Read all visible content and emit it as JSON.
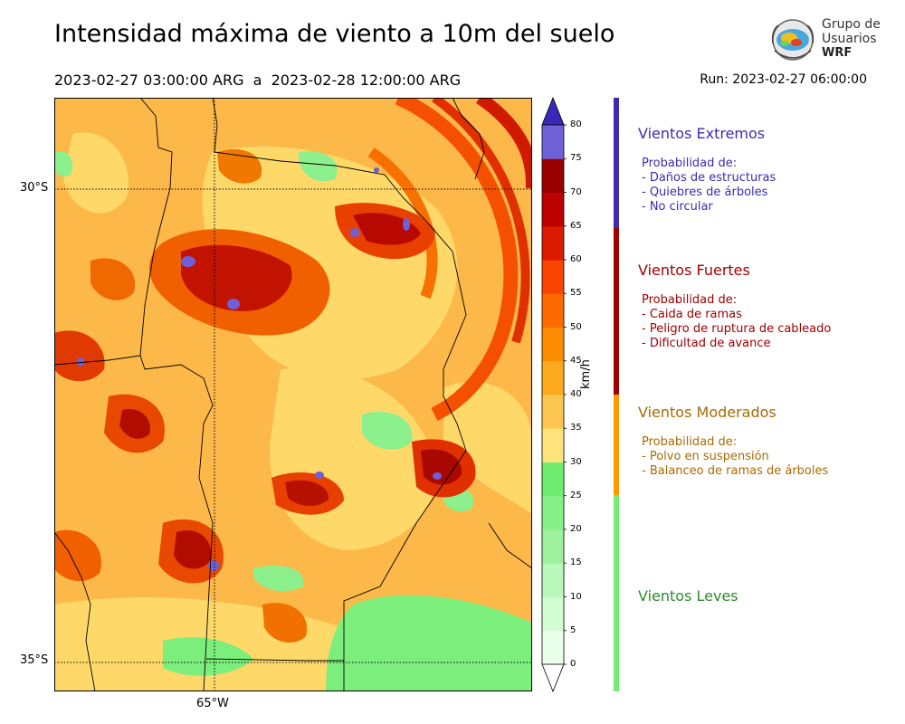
{
  "header": {
    "title": "Intensidad máxima de viento a 10m del suelo",
    "period": "2023-02-27 03:00:00 ARG  a  2023-02-28 12:00:00 ARG",
    "run": "Run: 2023-02-27 06:00:00"
  },
  "logo": {
    "line1": "Grupo de",
    "line2": "Usuarios",
    "line3": "WRF"
  },
  "map": {
    "lat_labels": [
      "30°S",
      "35°S"
    ],
    "lon_labels": [
      "65°W"
    ]
  },
  "colorbar": {
    "unit": "km/h",
    "ticks": [
      "0",
      "5",
      "10",
      "15",
      "20",
      "25",
      "30",
      "35",
      "40",
      "45",
      "50",
      "55",
      "60",
      "65",
      "70",
      "75",
      "80"
    ],
    "colors": [
      "#eaffea",
      "#d2fcd2",
      "#b8f8b8",
      "#9ef29e",
      "#86ef86",
      "#70ec70",
      "#fee27a",
      "#fdc651",
      "#fdaa1e",
      "#fd8c00",
      "#fd6a00",
      "#f84400",
      "#dc1a00",
      "#bc0000",
      "#9a0000",
      "#7060d8",
      "#5444c8",
      "#3a28b8"
    ]
  },
  "categories": [
    {
      "title": "Vientos Extremos",
      "color": "#3a2db0",
      "lines": [
        "Probabilidad de:",
        "- Daños de estructuras",
        "- Quiebres de árboles",
        "- No circular"
      ]
    },
    {
      "title": "Vientos Fuertes",
      "color": "#a00000",
      "lines": [
        "Probabilidad de:",
        "- Caida de ramas",
        "- Peligro de ruptura de cableado",
        "- Dificultad de avance"
      ]
    },
    {
      "title": "Vientos Moderados",
      "color": "#a86a00",
      "lines": [
        "Probabilidad de:",
        "- Polvo en suspensión",
        "- Balanceo de ramas de árboles"
      ]
    },
    {
      "title": "Vientos Leves",
      "color": "#2e8a2e",
      "lines": []
    }
  ]
}
